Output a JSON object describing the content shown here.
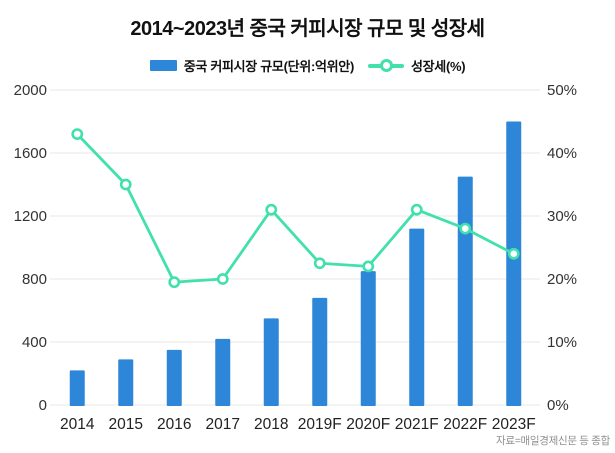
{
  "title": "2014~2023년 중국 커피시장 규모 및 성장세",
  "source": "자료=매일경제신문 등 종합",
  "legend": {
    "bar_label": "중국 커피시장 규모(단위:억위안)",
    "line_label": "성장세(%)"
  },
  "colors": {
    "bar": "#2d86d8",
    "line": "#41e0ac",
    "grid": "#e7e7e7",
    "axis_text": "#333333",
    "x_label_text": "#222222",
    "title_text": "#111111",
    "source_text": "#8f8f8f"
  },
  "chart_data": {
    "type": "bar",
    "title": "2014~2023년 중국 커피시장 규모 및 성장세",
    "categories": [
      "2014",
      "2015",
      "2016",
      "2017",
      "2018",
      "2019F",
      "2020F",
      "2021F",
      "2022F",
      "2023F"
    ],
    "series": [
      {
        "name": "중국 커피시장 규모(단위:억위안)",
        "type": "bar",
        "axis": "left",
        "values": [
          220,
          290,
          350,
          420,
          550,
          680,
          850,
          1120,
          1450,
          1800
        ]
      },
      {
        "name": "성장세(%)",
        "type": "line",
        "axis": "right",
        "values": [
          43,
          35,
          19.5,
          20,
          31,
          22.5,
          22,
          31,
          28,
          24
        ]
      }
    ],
    "left_axis": {
      "min": 0,
      "max": 2000,
      "step": 400,
      "ticks": [
        "0",
        "400",
        "800",
        "1200",
        "1600",
        "2000"
      ]
    },
    "right_axis": {
      "min": 0,
      "max": 50,
      "step": 10,
      "ticks": [
        "0%",
        "10%",
        "20%",
        "30%",
        "40%",
        "50%"
      ]
    },
    "grid": "horizontal",
    "legend_position": "top"
  }
}
